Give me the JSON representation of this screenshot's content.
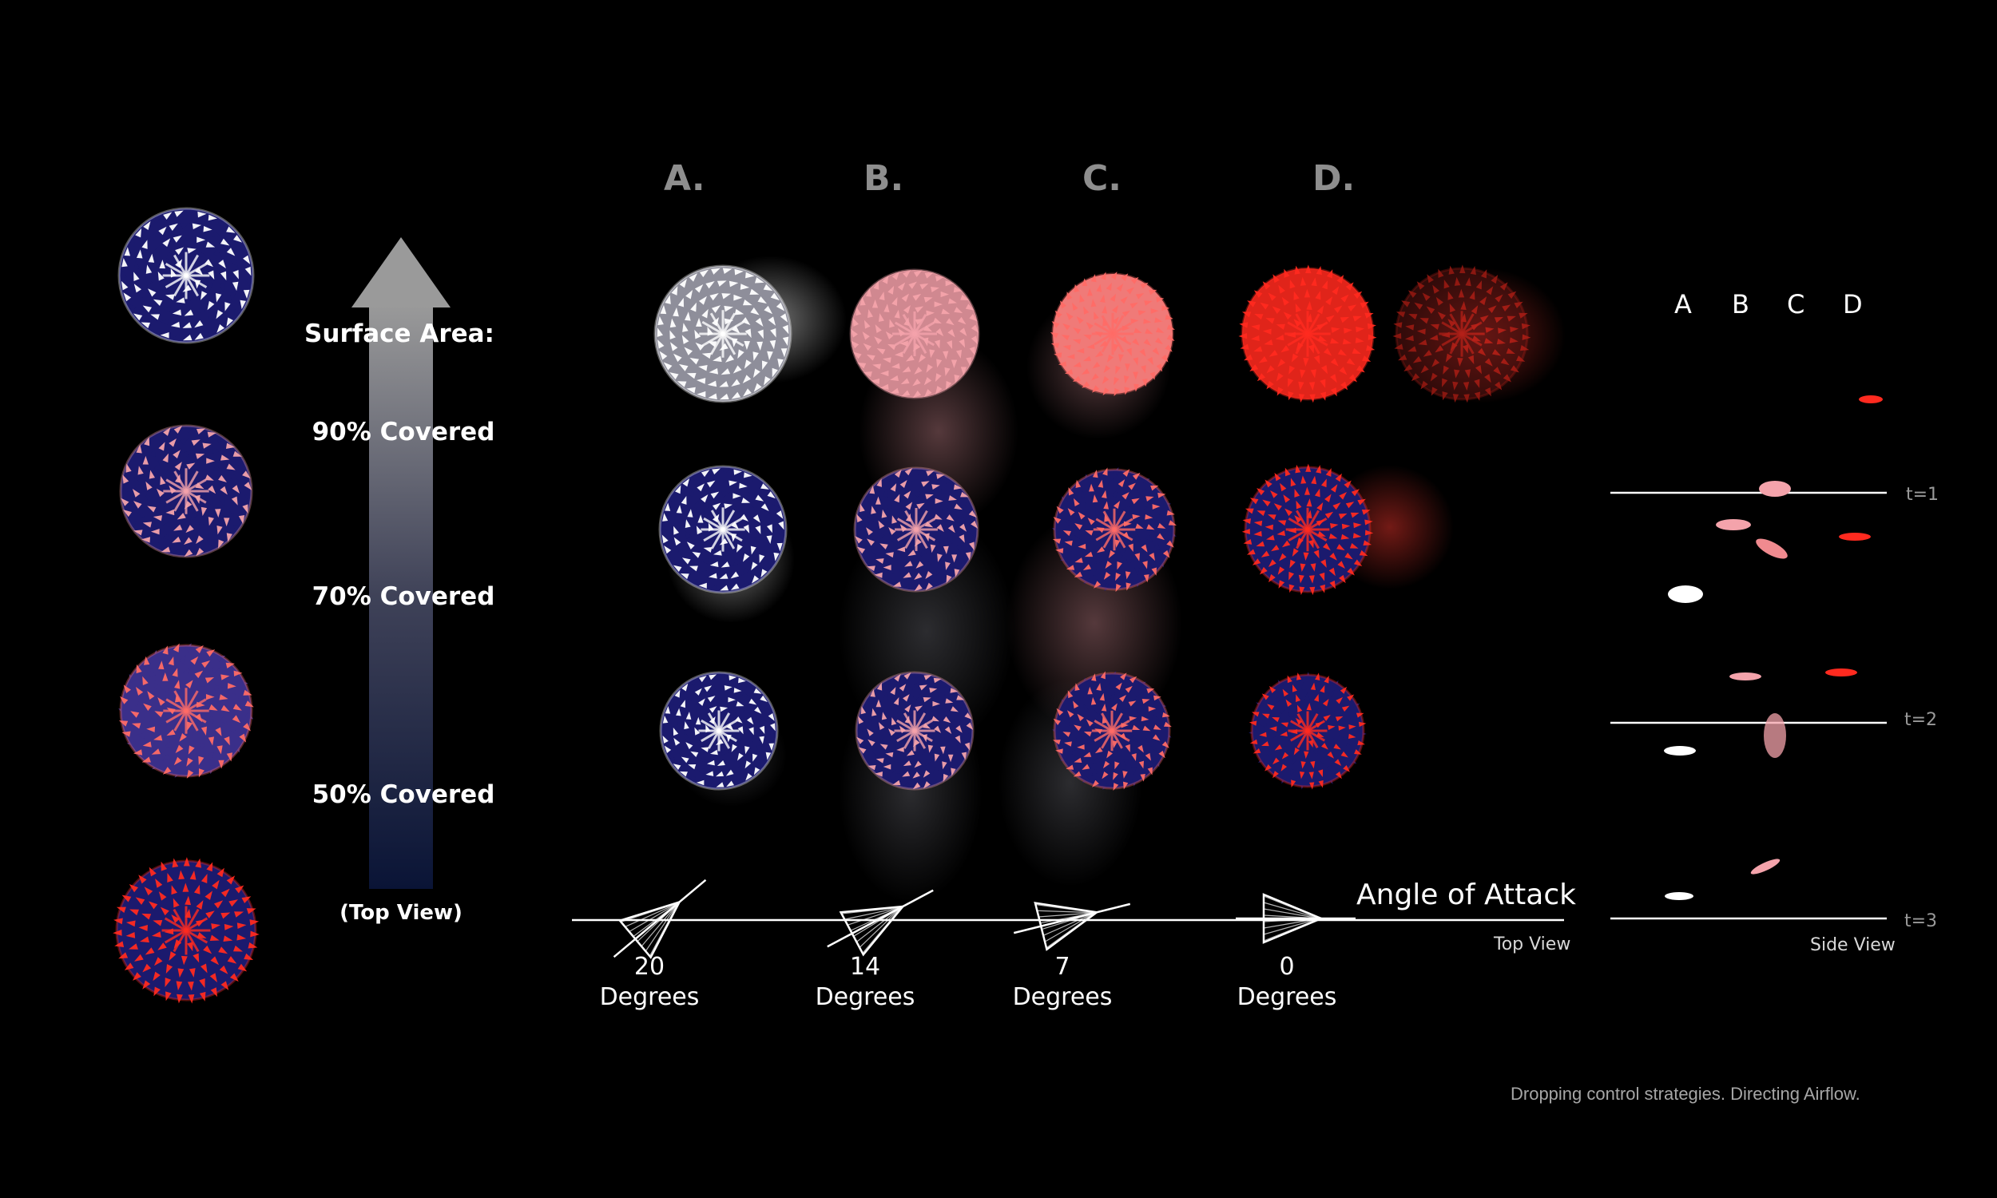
{
  "columns": [
    {
      "letter": "A.",
      "color": "#ffffff"
    },
    {
      "letter": "B.",
      "color": "#f4a3ab"
    },
    {
      "letter": "C.",
      "color": "#ff6b66"
    },
    {
      "letter": "D.",
      "color": "#ff2a1f"
    }
  ],
  "legend": {
    "title": "Surface Area:",
    "levels": [
      {
        "label": "90% Covered",
        "fraction": 0.9
      },
      {
        "label": "70% Covered",
        "fraction": 0.7
      },
      {
        "label": "50% Covered",
        "fraction": 0.5
      }
    ],
    "footer": "(Top View)"
  },
  "angles": [
    {
      "value": "20",
      "unit": "Degrees",
      "angle_deg": 20
    },
    {
      "value": "14",
      "unit": "Degrees",
      "angle_deg": 14
    },
    {
      "value": "7",
      "unit": "Degrees",
      "angle_deg": 7
    },
    {
      "value": "0",
      "unit": "Degrees",
      "angle_deg": 0
    }
  ],
  "axis": {
    "title": "Angle of Attack",
    "view": "Top View"
  },
  "side_view": {
    "letters": [
      "A",
      "B",
      "C",
      "D"
    ],
    "times": [
      "t=1",
      "t=2",
      "t=3"
    ],
    "label": "Side View"
  },
  "caption": "Dropping control strategies. Directing Airflow.",
  "colors": {
    "background": "#000000",
    "navy": "#1b1a6e",
    "white_vane": "#ffffff",
    "pink_vane": "#f4a3ab",
    "salmon_vane": "#ff6b66",
    "red_vane": "#ff2a1f",
    "label_grey": "#8e8e8e"
  }
}
